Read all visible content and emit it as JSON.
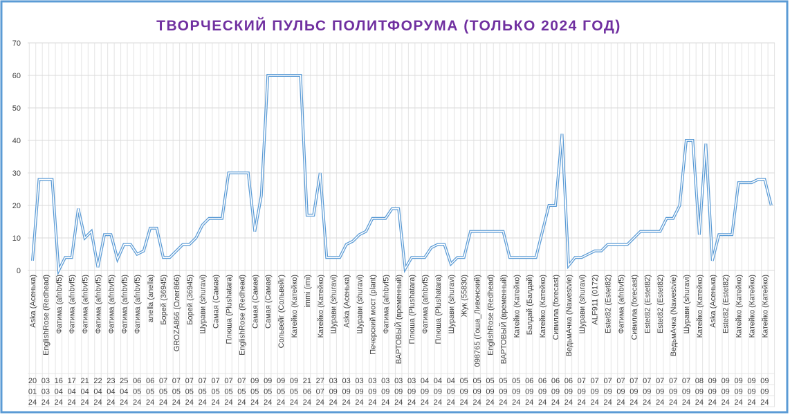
{
  "chart_data": {
    "type": "line",
    "title": "ТВОРЧЕСКИЙ ПУЛЬС ПОЛИТФОРУМА (ТОЛЬКО 2024 ГОД)",
    "categories": [
      "Aska (Асенька)",
      null,
      "EnglishRose (Redhead)",
      null,
      "Фатима (afnbvf5)",
      null,
      "Фатима (afnbvf5)",
      null,
      "Фатима (afnbvf5)",
      null,
      "Фатима (afnbvf5)",
      null,
      "Фатима (afnbvf5)",
      null,
      "Фатима (afnbvf5)",
      null,
      "Фатима (afnbvf5)",
      null,
      "anella (anella)",
      null,
      "Борей (36945)",
      null,
      "GROZA866 (Олег866)",
      null,
      "Борей (36945)",
      null,
      "Шурави (shuravi)",
      null,
      "Самая (Самая)",
      null,
      "Плюша (Plushatara)",
      null,
      "EnglishRose (Redhead)",
      null,
      "Самая (Самая)",
      null,
      "Самая (Самая)",
      null,
      "Сольвейг (Сольвейг)",
      null,
      "Катейко (Катейко)",
      null,
      "immi (imi)",
      null,
      "Катейко (Катейко)",
      null,
      "Шурави (shuravi)",
      null,
      "Aska (Асенька)",
      null,
      "Шурави (shuravi)",
      null,
      "Печерский мост (plant)",
      null,
      "Фатима (afnbvf5)",
      null,
      "ВАРТОВЫЙ (временный)",
      null,
      "Плюша (Plushatara)",
      null,
      "Фатима (afnbvf5)",
      null,
      "Плюша (Plushatara)",
      null,
      "Шурави (shuravi)",
      null,
      "Жук (55830)",
      null,
      "098765 (Гоша_Ливонский)",
      null,
      "EnglishRose (Redhead)",
      null,
      "ВАРТОВЫЙ (временный)",
      null,
      "Катейко (Катейко)",
      null,
      "Балдай (Балдай)",
      null,
      "Катейко (Катейко)",
      null,
      "Сивилла (forecast)",
      null,
      "ВедьмАчка (Nawestvie)",
      null,
      "Шурави (shuravi)",
      null,
      "ALF911 (0172)",
      null,
      "Estet82 (Estet82)",
      null,
      "Фатима (afnbvf5)",
      null,
      "Сивилла (forecast)",
      null,
      "Estet82 (Estet82)",
      null,
      "Estet82 (Estet82)",
      null,
      "ВедьмАчка (Nawestvie)",
      null,
      "Шурави (shuravi)",
      null,
      "Катейко (Катейко)",
      null,
      "Aska (Асенька)",
      null,
      "Estet82 (Estet82)",
      null,
      "Катейко (Катейко)",
      null,
      "Катейко (Катейко)",
      null,
      "Катейко (Катейко)",
      null
    ],
    "dates": [
      [
        "20",
        "01",
        "24"
      ],
      null,
      [
        "03",
        "03",
        "24"
      ],
      null,
      [
        "16",
        "04",
        "24"
      ],
      null,
      [
        "17",
        "04",
        "24"
      ],
      null,
      [
        "21",
        "04",
        "24"
      ],
      null,
      [
        "22",
        "04",
        "24"
      ],
      null,
      [
        "23",
        "04",
        "24"
      ],
      null,
      [
        "25",
        "04",
        "24"
      ],
      null,
      [
        "06",
        "05",
        "24"
      ],
      null,
      [
        "06",
        "05",
        "24"
      ],
      null,
      [
        "07",
        "05",
        "24"
      ],
      null,
      [
        "07",
        "05",
        "24"
      ],
      null,
      [
        "07",
        "05",
        "24"
      ],
      null,
      [
        "07",
        "05",
        "24"
      ],
      null,
      [
        "07",
        "05",
        "24"
      ],
      null,
      [
        "07",
        "05",
        "24"
      ],
      null,
      [
        "07",
        "05",
        "24"
      ],
      null,
      [
        "09",
        "05",
        "24"
      ],
      null,
      [
        "09",
        "05",
        "24"
      ],
      null,
      [
        "09",
        "05",
        "24"
      ],
      null,
      [
        "09",
        "05",
        "24"
      ],
      null,
      [
        "21",
        "06",
        "24"
      ],
      null,
      [
        "27",
        "07",
        "24"
      ],
      null,
      [
        "03",
        "09",
        "24"
      ],
      null,
      [
        "03",
        "09",
        "24"
      ],
      null,
      [
        "03",
        "09",
        "24"
      ],
      null,
      [
        "03",
        "09",
        "24"
      ],
      null,
      [
        "03",
        "09",
        "24"
      ],
      null,
      [
        "03",
        "09",
        "24"
      ],
      null,
      [
        "03",
        "09",
        "24"
      ],
      null,
      [
        "04",
        "09",
        "24"
      ],
      null,
      [
        "04",
        "09",
        "24"
      ],
      null,
      [
        "04",
        "09",
        "24"
      ],
      null,
      [
        "05",
        "09",
        "24"
      ],
      null,
      [
        "05",
        "09",
        "24"
      ],
      null,
      [
        "05",
        "09",
        "24"
      ],
      null,
      [
        "05",
        "09",
        "24"
      ],
      null,
      [
        "05",
        "09",
        "24"
      ],
      null,
      [
        "06",
        "09",
        "24"
      ],
      null,
      [
        "06",
        "09",
        "24"
      ],
      null,
      [
        "06",
        "09",
        "24"
      ],
      null,
      [
        "06",
        "09",
        "24"
      ],
      null,
      [
        "07",
        "09",
        "24"
      ],
      null,
      [
        "07",
        "09",
        "24"
      ],
      null,
      [
        "07",
        "09",
        "24"
      ],
      null,
      [
        "07",
        "09",
        "24"
      ],
      null,
      [
        "07",
        "09",
        "24"
      ],
      null,
      [
        "07",
        "09",
        "24"
      ],
      null,
      [
        "07",
        "09",
        "24"
      ],
      null,
      [
        "07",
        "09",
        "24"
      ],
      null,
      [
        "07",
        "09",
        "24"
      ],
      null,
      [
        "08",
        "09",
        "24"
      ],
      null,
      [
        "09",
        "09",
        "24"
      ],
      null,
      [
        "09",
        "09",
        "24"
      ],
      null,
      [
        "09",
        "09",
        "24"
      ],
      null,
      [
        "09",
        "09",
        "24"
      ],
      null,
      [
        "09",
        "09",
        "24"
      ],
      null
    ],
    "series": [
      {
        "color": "#5b9bd5",
        "values": [
          3,
          28,
          28,
          28,
          0,
          4,
          4,
          19,
          10,
          12,
          1,
          11,
          11,
          3.5,
          8,
          8,
          5,
          6,
          13,
          13,
          4,
          4,
          6,
          8,
          8,
          10,
          14,
          16,
          16,
          16,
          30,
          30,
          30,
          30,
          12,
          23,
          60,
          60,
          60,
          60,
          60,
          60,
          17,
          17,
          30,
          4,
          4,
          4,
          8,
          9,
          11,
          12,
          16,
          16,
          16,
          19,
          19,
          0.5,
          4,
          4,
          4,
          7,
          8,
          8,
          2,
          4,
          4,
          12,
          12,
          12,
          12,
          12,
          12,
          4,
          4,
          4,
          4,
          4,
          12,
          20,
          20,
          42,
          1.5,
          4,
          4,
          5,
          6,
          6,
          8,
          8,
          8,
          8,
          10,
          12,
          12,
          12,
          12,
          16,
          16,
          20,
          40,
          40,
          11,
          39,
          3,
          11,
          11,
          11,
          27,
          27,
          27,
          28,
          28,
          20
        ]
      }
    ],
    "ylim": [
      0,
      70
    ],
    "yticks": [
      0,
      10,
      20,
      30,
      40,
      50,
      60,
      70
    ],
    "grid": true
  }
}
